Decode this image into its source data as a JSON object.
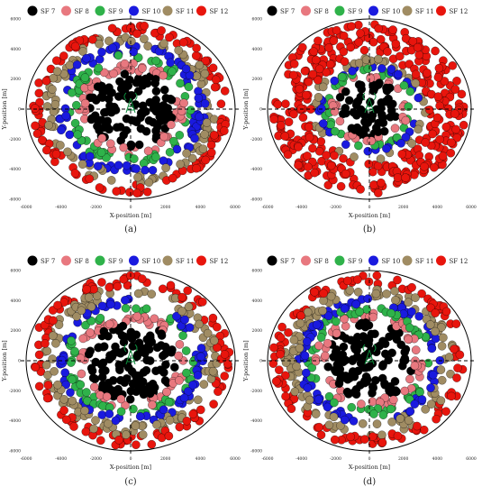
{
  "legend": [
    {
      "label": "SF 7",
      "color": "#000000"
    },
    {
      "label": "SF 8",
      "color": "#e8787f"
    },
    {
      "label": "SF 9",
      "color": "#2fb24a"
    },
    {
      "label": "SF 10",
      "color": "#1a1adf"
    },
    {
      "label": "SF 11",
      "color": "#a08c63"
    },
    {
      "label": "SF 12",
      "color": "#e8150d"
    }
  ],
  "chart_data": [
    {
      "panel": "(a)",
      "type": "scatter",
      "xlabel": "X-position [m]",
      "ylabel": "Y-position [m]",
      "xlim": [
        -6000,
        6000
      ],
      "ylim": [
        -6000,
        6000
      ],
      "xticks": [
        -6000,
        -4000,
        -2000,
        0,
        2000,
        4000,
        6000
      ],
      "yticks": [
        -6000,
        -4000,
        -2000,
        0,
        2000,
        4000,
        6000
      ],
      "cell_radius_m": 6000,
      "sf_rings_m": [
        [
          0,
          2500,
          7
        ],
        [
          2500,
          3100,
          8
        ],
        [
          3100,
          3700,
          9
        ],
        [
          3700,
          4300,
          10
        ],
        [
          4300,
          5000,
          11
        ],
        [
          5000,
          5600,
          12
        ]
      ]
    },
    {
      "panel": "(b)",
      "type": "scatter",
      "xlabel": "X-position [m]",
      "ylabel": "Y-position [m]",
      "xlim": [
        -6000,
        6000
      ],
      "ylim": [
        -6000,
        6000
      ],
      "xticks": [
        -6000,
        -4000,
        -2000,
        0,
        2000,
        4000,
        6000
      ],
      "yticks": [
        -6000,
        -4000,
        -2000,
        0,
        2000,
        4000,
        6000
      ],
      "cell_radius_m": 6000,
      "sf_rings_m": [
        [
          0,
          1900,
          7
        ],
        [
          1900,
          2300,
          8
        ],
        [
          2300,
          2700,
          9
        ],
        [
          2700,
          3000,
          10
        ],
        [
          3000,
          3400,
          11
        ],
        [
          3400,
          5900,
          12
        ]
      ]
    },
    {
      "panel": "(c)",
      "type": "scatter",
      "xlabel": "X-position [m]",
      "ylabel": "Y-position [m]",
      "xlim": [
        -6000,
        6000
      ],
      "ylim": [
        -6000,
        6000
      ],
      "xticks": [
        -6000,
        -4000,
        -2000,
        0,
        2000,
        4000,
        6000
      ],
      "yticks": [
        -6000,
        -4000,
        -2000,
        0,
        2000,
        4000,
        6000
      ],
      "cell_radius_m": 6000,
      "sf_rings_m": [
        [
          0,
          2600,
          7
        ],
        [
          2600,
          3200,
          8
        ],
        [
          3200,
          3700,
          9
        ],
        [
          3700,
          4200,
          10
        ],
        [
          4200,
          5000,
          11
        ],
        [
          5000,
          5700,
          12
        ]
      ]
    },
    {
      "panel": "(d)",
      "type": "scatter",
      "xlabel": "X-position [m]",
      "ylabel": "Y-position [m]",
      "xlim": [
        -6000,
        6000
      ],
      "ylim": [
        -6000,
        6000
      ],
      "xticks": [
        -6000,
        -4000,
        -2000,
        0,
        2000,
        4000,
        6000
      ],
      "yticks": [
        -6000,
        -4000,
        -2000,
        0,
        2000,
        4000,
        6000
      ],
      "cell_radius_m": 6000,
      "sf_rings_m": [
        [
          0,
          2600,
          7
        ],
        [
          2600,
          3200,
          8
        ],
        [
          3200,
          3700,
          9
        ],
        [
          3700,
          4200,
          10
        ],
        [
          4200,
          5000,
          11
        ],
        [
          5000,
          5700,
          12
        ]
      ]
    }
  ]
}
